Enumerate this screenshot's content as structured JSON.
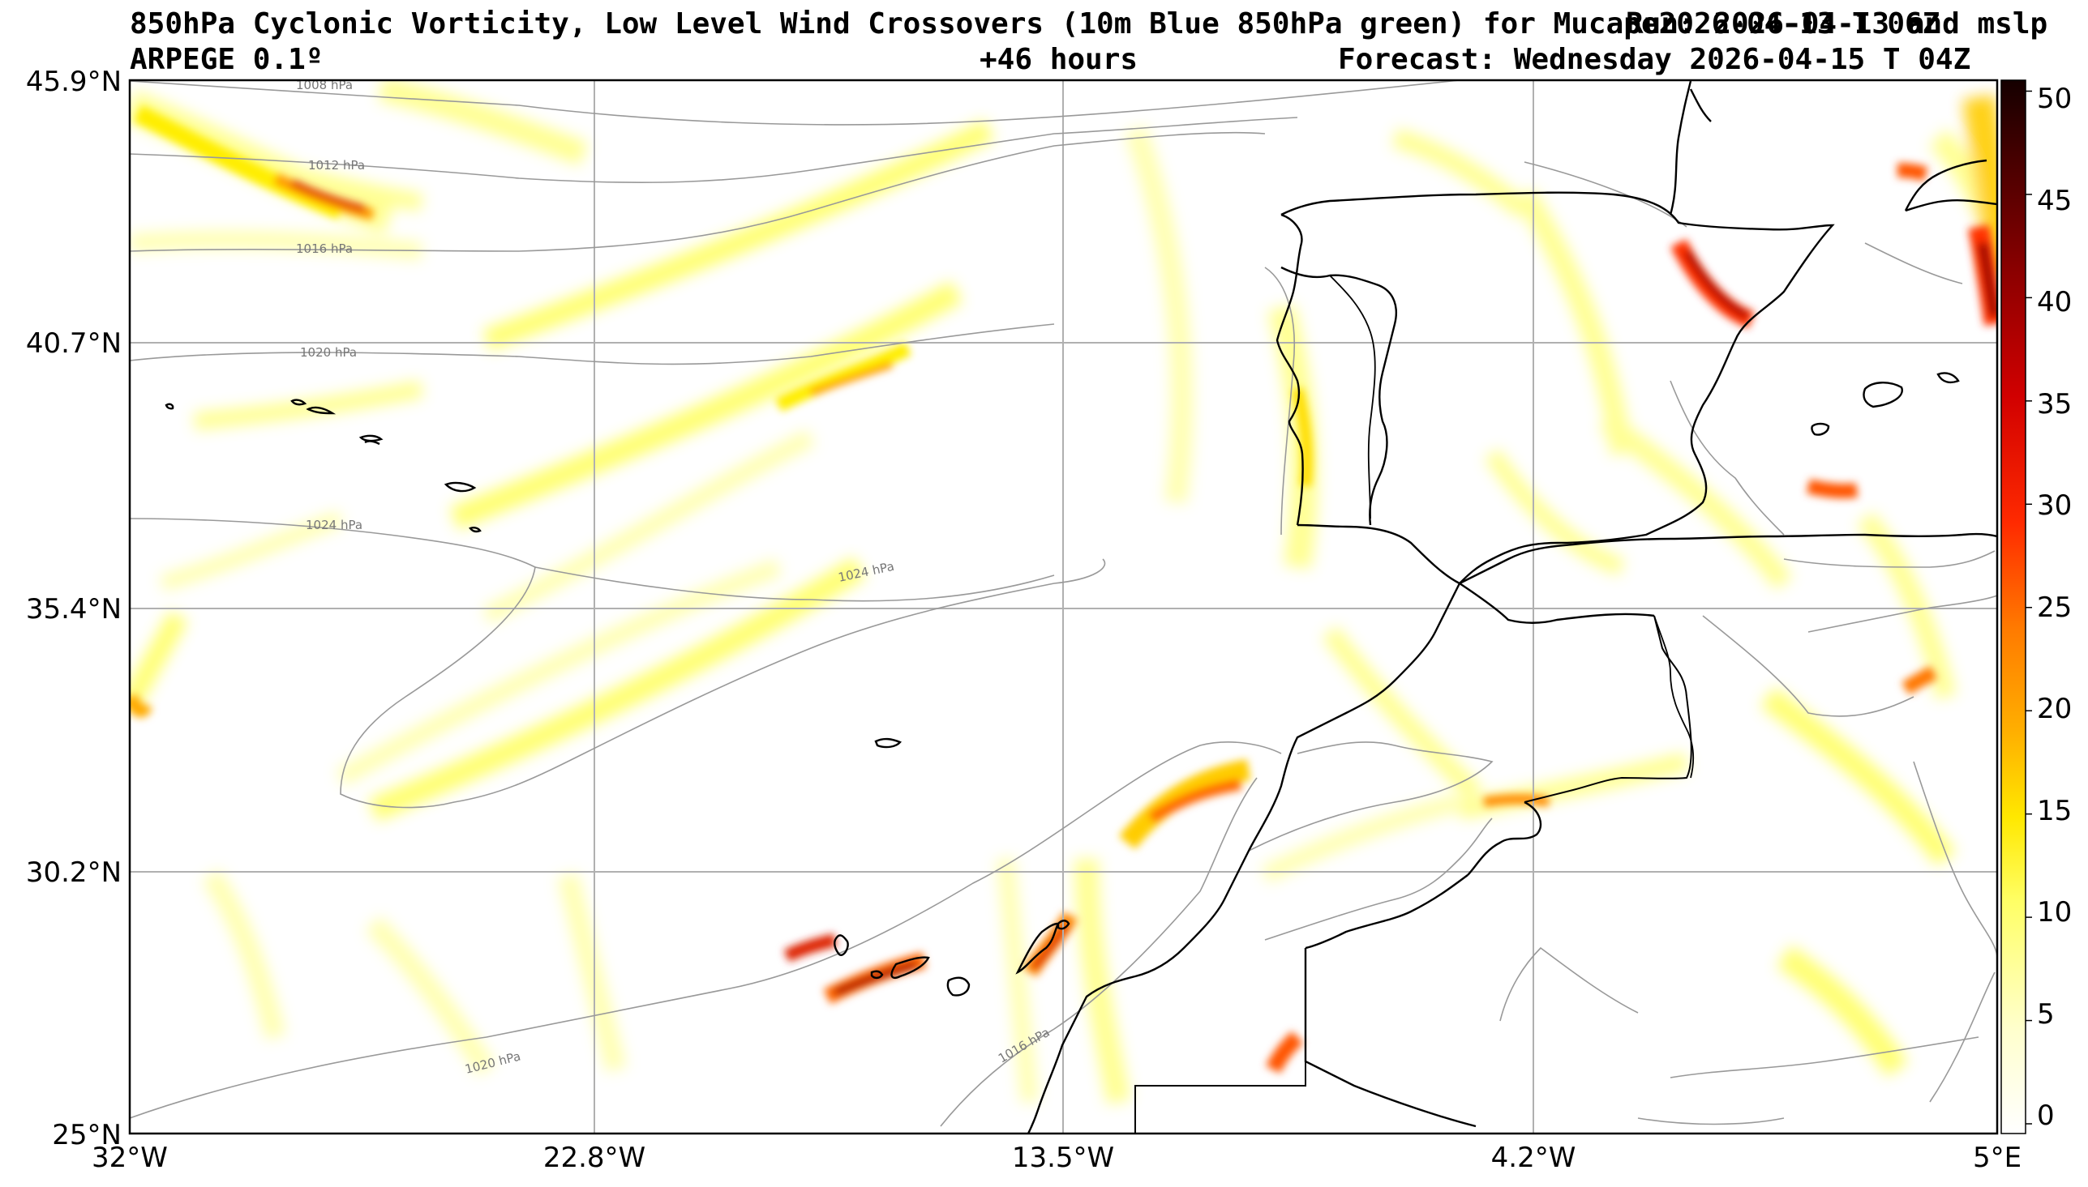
{
  "header": {
    "title_line1": "850hPa Cyclonic Vorticity, Low Level Wind Crossovers (10m Blue 850hPa green) for Mucape2026-04-13 T 06Z",
    "run_overlap": "Run: 2026-04-13 and mslp",
    "model": "ARPEGE 0.1º",
    "lead": "+46 hours",
    "forecast": "Forecast: Wednesday 2026-04-15 T 04Z"
  },
  "map": {
    "lat_labels": [
      "45.9°N",
      "40.7°N",
      "35.4°N",
      "30.2°N",
      "25°N"
    ],
    "lon_labels": [
      "32°W",
      "22.8°W",
      "13.5°W",
      "4.2°W",
      "5°E"
    ],
    "isobar_labels": [
      "1008 hPa",
      "1012 hPa",
      "1016 hPa",
      "1020 hPa",
      "1024 hPa",
      "1024 hPa",
      "1020 hPa",
      "1016 hPa"
    ],
    "colors": {
      "light_yellow": "#ffff99",
      "yellow": "#ffee00",
      "orange": "#ff9900",
      "red": "#dd1100",
      "dark_red": "#880000",
      "isobar": "#999999",
      "coast": "#000000",
      "grid": "#b0b0b0"
    }
  },
  "colorbar": {
    "ticks": [
      "0",
      "5",
      "10",
      "15",
      "20",
      "25",
      "30",
      "35",
      "40",
      "45",
      "50"
    ],
    "min": 0,
    "max": 51
  }
}
